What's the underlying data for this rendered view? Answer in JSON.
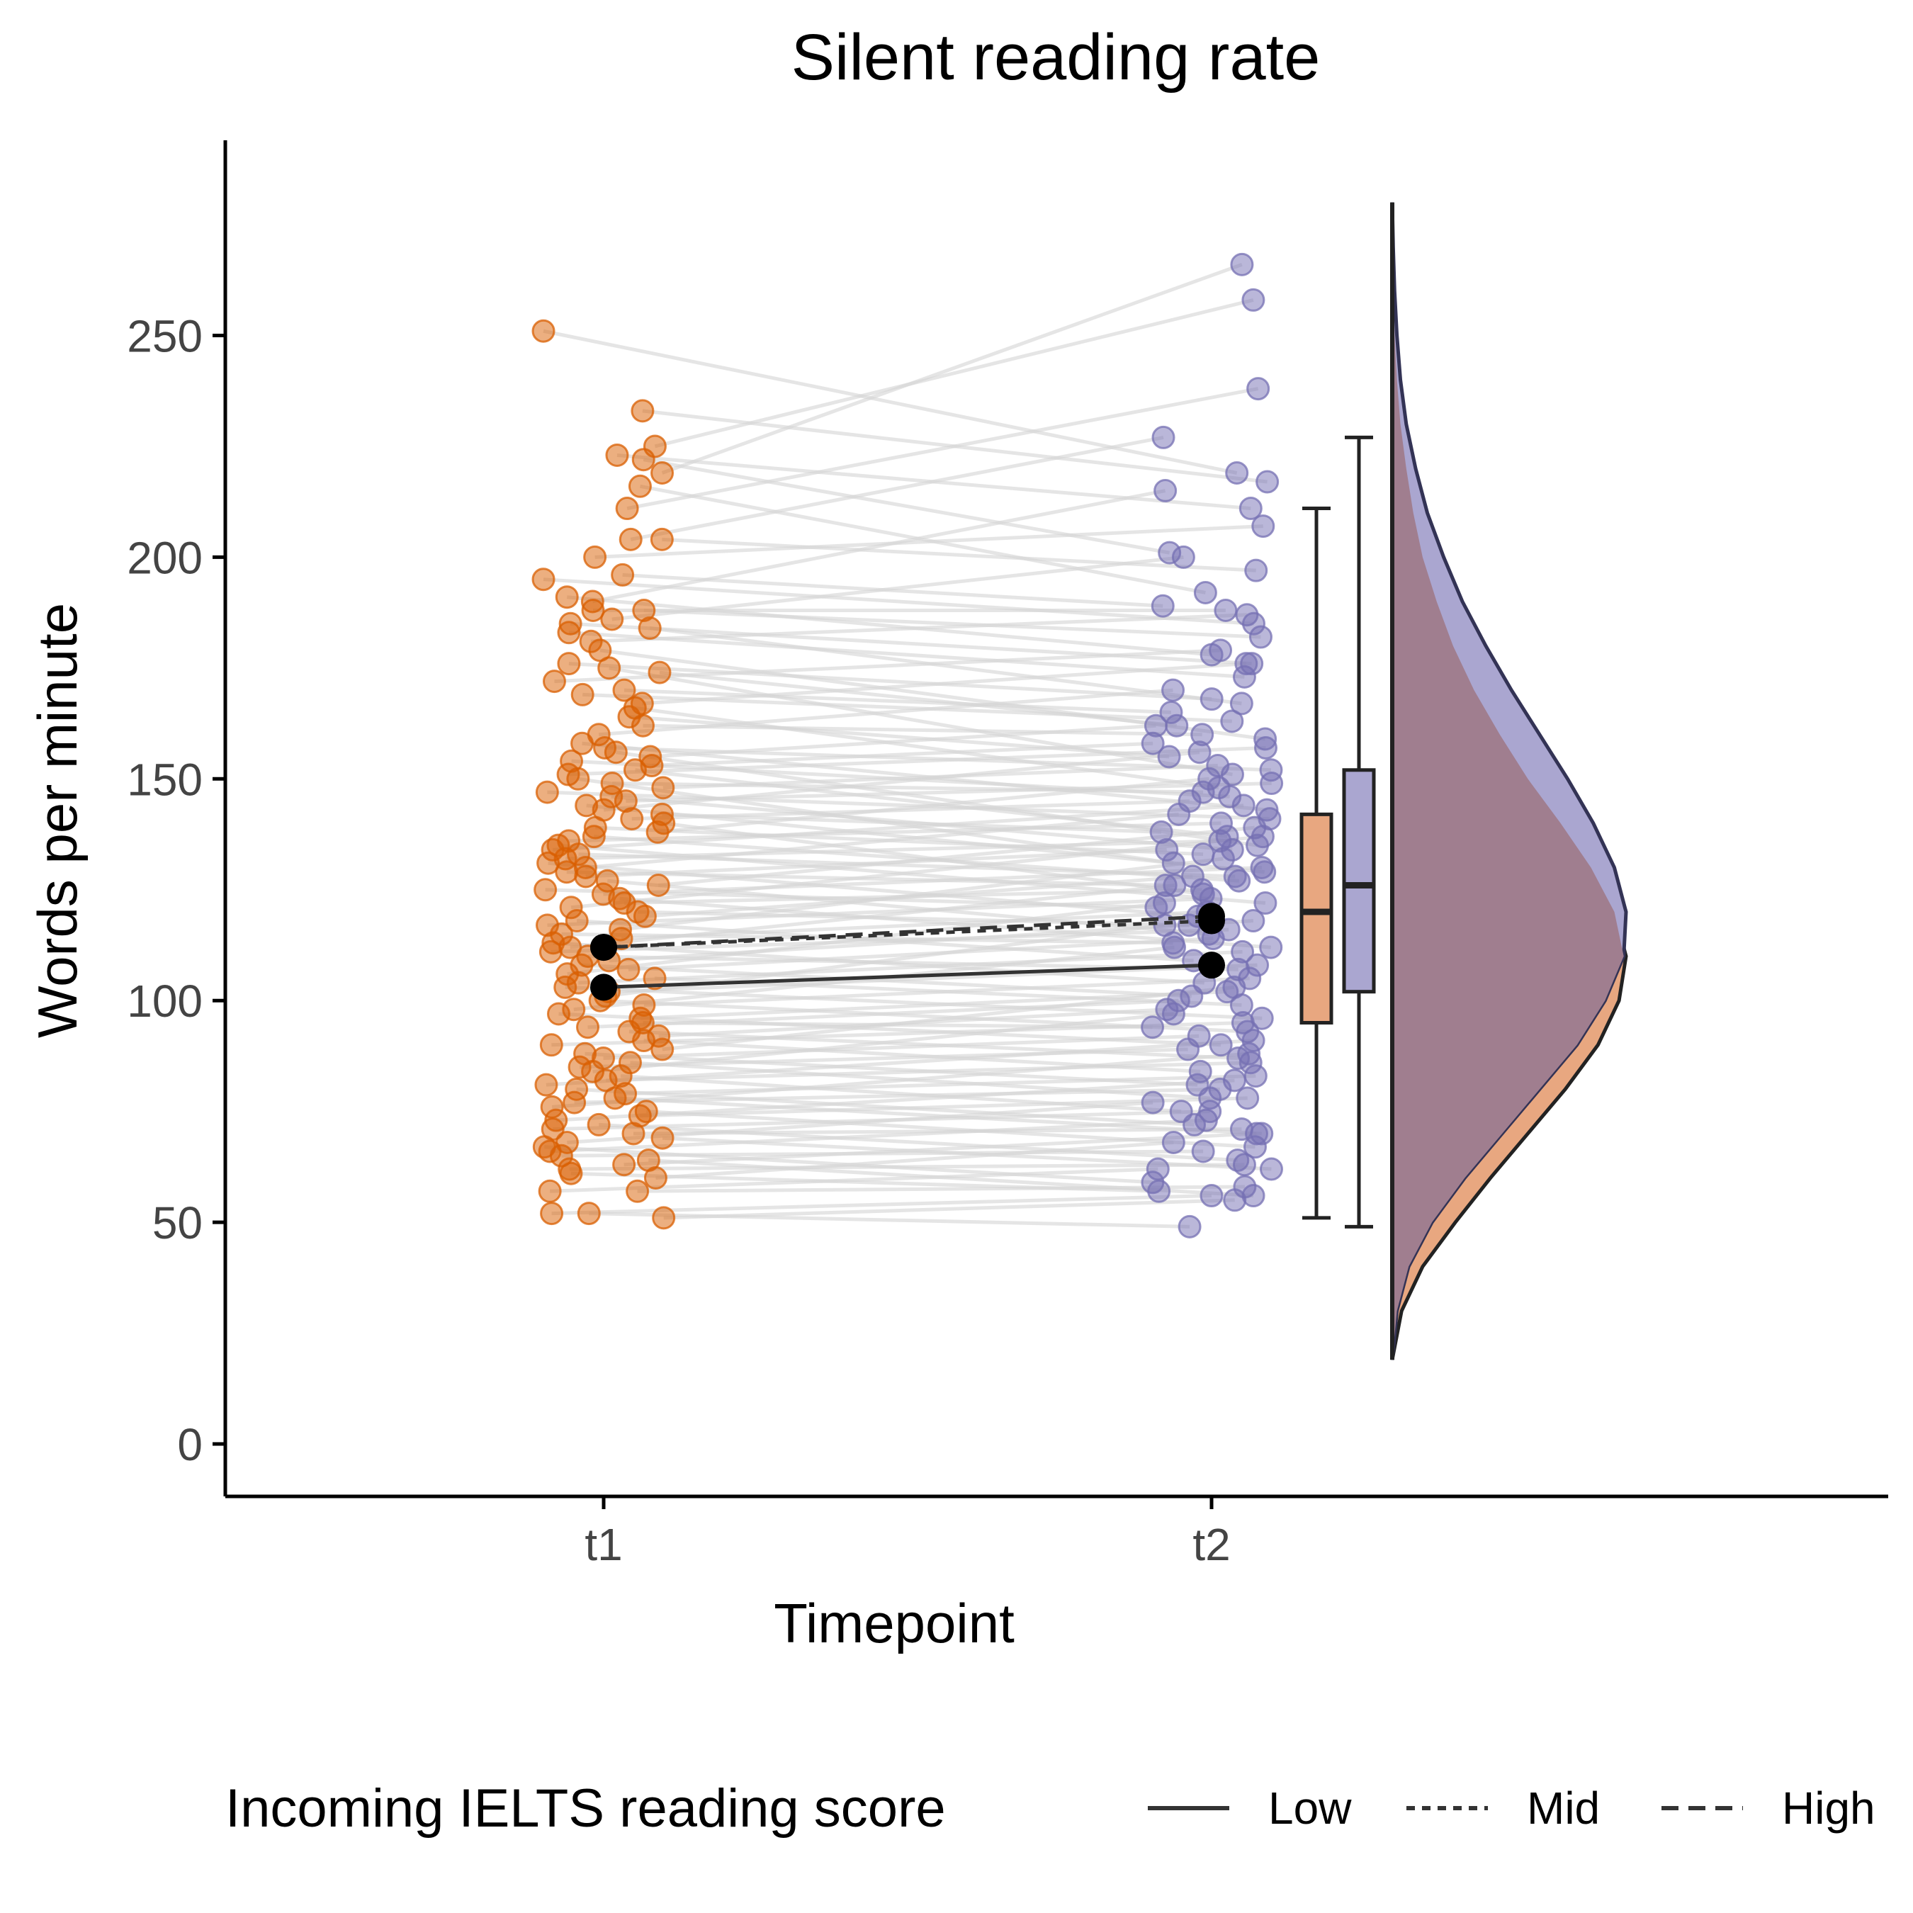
{
  "chart_data": {
    "type": "raincloud",
    "title": "Silent reading rate",
    "xlabel": "Timepoint",
    "ylabel": "Words per minute",
    "categories": [
      "t1",
      "t2"
    ],
    "y_ticks": [
      0,
      50,
      100,
      150,
      200,
      250
    ],
    "ylim": [
      -13,
      292
    ],
    "colors": {
      "t1_point": "#d95f02",
      "t2_point": "#7570b3",
      "t1_fill": "#e8a780",
      "t2_fill": "#aaa6d0",
      "overlap_fill": "#a07e8f",
      "pair_line": "#d3d3d3",
      "mean": "#000000"
    },
    "legend": {
      "title": "Incoming IELTS reading score",
      "position": "bottom",
      "entries": [
        {
          "label": "Low",
          "linestyle": "solid"
        },
        {
          "label": "Mid",
          "linestyle": "dotted"
        },
        {
          "label": "High",
          "linestyle": "dashed"
        }
      ]
    },
    "group_means": [
      {
        "group": "Low",
        "values": [
          103,
          108
        ]
      },
      {
        "group": "Mid",
        "values": [
          112,
          118
        ]
      },
      {
        "group": "High",
        "values": [
          112,
          119
        ]
      }
    ],
    "boxplots": [
      {
        "category": "t1",
        "min": 51,
        "q1": 95,
        "median": 120,
        "q3": 142,
        "max": 211
      },
      {
        "category": "t2",
        "min": 49,
        "q1": 102,
        "median": 126,
        "q3": 152,
        "max": 227
      }
    ],
    "density": {
      "y": [
        19,
        30,
        40,
        50,
        60,
        70,
        80,
        90,
        100,
        110,
        120,
        130,
        140,
        150,
        160,
        170,
        180,
        190,
        200,
        210,
        220,
        230,
        240,
        250,
        260,
        270,
        280
      ],
      "t1": [
        0.0,
        0.04,
        0.13,
        0.27,
        0.42,
        0.58,
        0.74,
        0.88,
        0.97,
        1.0,
        0.95,
        0.85,
        0.72,
        0.58,
        0.46,
        0.35,
        0.26,
        0.19,
        0.13,
        0.09,
        0.06,
        0.035,
        0.02,
        0.01,
        0.005,
        0.002,
        0.0
      ],
      "t2": [
        0.0,
        0.02,
        0.07,
        0.17,
        0.31,
        0.47,
        0.63,
        0.79,
        0.91,
        0.99,
        1.0,
        0.95,
        0.86,
        0.75,
        0.63,
        0.51,
        0.4,
        0.3,
        0.22,
        0.15,
        0.1,
        0.06,
        0.035,
        0.02,
        0.01,
        0.004,
        0.0
      ]
    },
    "pairs": [
      [
        251,
        219
      ],
      [
        233,
        217
      ],
      [
        225,
        258
      ],
      [
        223,
        211
      ],
      [
        222,
        201
      ],
      [
        219,
        266
      ],
      [
        216,
        192
      ],
      [
        211,
        238
      ],
      [
        204,
        227
      ],
      [
        204,
        197
      ],
      [
        200,
        207
      ],
      [
        196,
        189
      ],
      [
        195,
        185
      ],
      [
        191,
        178
      ],
      [
        190,
        215
      ],
      [
        188,
        182
      ],
      [
        188,
        188
      ],
      [
        186,
        200
      ],
      [
        185,
        176
      ],
      [
        184,
        167
      ],
      [
        183,
        173
      ],
      [
        181,
        187
      ],
      [
        179,
        159
      ],
      [
        176,
        168
      ],
      [
        175,
        151
      ],
      [
        174,
        162
      ],
      [
        172,
        179
      ],
      [
        170,
        165
      ],
      [
        169,
        163
      ],
      [
        167,
        176
      ],
      [
        166,
        148
      ],
      [
        164,
        155
      ],
      [
        162,
        160
      ],
      [
        160,
        170
      ],
      [
        158,
        143
      ],
      [
        157,
        152
      ],
      [
        156,
        135
      ],
      [
        155,
        162
      ],
      [
        154,
        146
      ],
      [
        153,
        158
      ],
      [
        152,
        137
      ],
      [
        151,
        157
      ],
      [
        150,
        131
      ],
      [
        149,
        147
      ],
      [
        148,
        153
      ],
      [
        147,
        141
      ],
      [
        146,
        134
      ],
      [
        145,
        149
      ],
      [
        144,
        129
      ],
      [
        143,
        156
      ],
      [
        142,
        138
      ],
      [
        141,
        145
      ],
      [
        140,
        124
      ],
      [
        139,
        133
      ],
      [
        138,
        150
      ],
      [
        137,
        127
      ],
      [
        136,
        140
      ],
      [
        135,
        122
      ],
      [
        134,
        144
      ],
      [
        133,
        128
      ],
      [
        132,
        136
      ],
      [
        131,
        119
      ],
      [
        130,
        142
      ],
      [
        129,
        126
      ],
      [
        128,
        134
      ],
      [
        127,
        115
      ],
      [
        126,
        139
      ],
      [
        125,
        121
      ],
      [
        124,
        130
      ],
      [
        123,
        112
      ],
      [
        122,
        125
      ],
      [
        121,
        137
      ],
      [
        120,
        117
      ],
      [
        119,
        128
      ],
      [
        118,
        109
      ],
      [
        117,
        123
      ],
      [
        116,
        132
      ],
      [
        115,
        113
      ],
      [
        114,
        120
      ],
      [
        113,
        104
      ],
      [
        112,
        126
      ],
      [
        111,
        116
      ],
      [
        110,
        107
      ],
      [
        109,
        118
      ],
      [
        108,
        101
      ],
      [
        107,
        114
      ],
      [
        106,
        122
      ],
      [
        105,
        99
      ],
      [
        104,
        111
      ],
      [
        103,
        96
      ],
      [
        102,
        108
      ],
      [
        101,
        117
      ],
      [
        100,
        93
      ],
      [
        99,
        105
      ],
      [
        98,
        112
      ],
      [
        97,
        90
      ],
      [
        96,
        102
      ],
      [
        95,
        94
      ],
      [
        94,
        100
      ],
      [
        93,
        87
      ],
      [
        92,
        98
      ],
      [
        91,
        84
      ],
      [
        90,
        95
      ],
      [
        89,
        103
      ],
      [
        88,
        81
      ],
      [
        87,
        92
      ],
      [
        86,
        78
      ],
      [
        85,
        89
      ],
      [
        84,
        97
      ],
      [
        83,
        75
      ],
      [
        82,
        86
      ],
      [
        81,
        91
      ],
      [
        80,
        72
      ],
      [
        79,
        83
      ],
      [
        78,
        70
      ],
      [
        77,
        80
      ],
      [
        76,
        88
      ],
      [
        75,
        67
      ],
      [
        74,
        78
      ],
      [
        73,
        82
      ],
      [
        72,
        64
      ],
      [
        71,
        75
      ],
      [
        70,
        71
      ],
      [
        69,
        62
      ],
      [
        68,
        77
      ],
      [
        67,
        59
      ],
      [
        66,
        73
      ],
      [
        65,
        66
      ],
      [
        64,
        56
      ],
      [
        63,
        70
      ],
      [
        62,
        63
      ],
      [
        61,
        57
      ],
      [
        60,
        68
      ],
      [
        57,
        58
      ],
      [
        57,
        62
      ],
      [
        52,
        49
      ],
      [
        52,
        56
      ],
      [
        51,
        55
      ]
    ]
  }
}
